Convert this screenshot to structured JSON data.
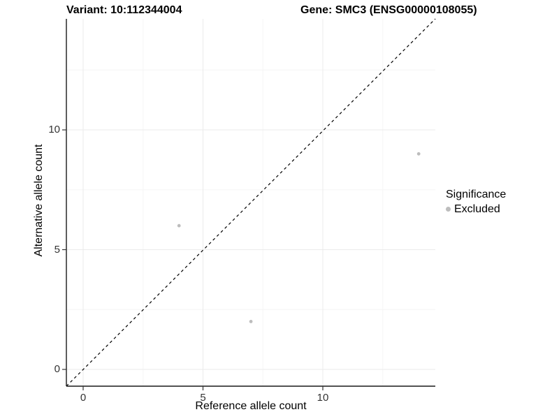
{
  "titles": {
    "variant": "Variant: 10:112344004",
    "gene": "Gene: SMC3 (ENSG00000108055)"
  },
  "axes": {
    "x_label": "Reference allele count",
    "y_label": "Alternative allele count"
  },
  "legend": {
    "title": "Significance",
    "items": [
      {
        "label": "Excluded",
        "color": "#bdbdbd"
      }
    ]
  },
  "colors": {
    "axis_line": "#1a1a1a",
    "tick_mark": "#333333",
    "grid_major": "#ebebeb",
    "grid_minor": "#f5f5f5",
    "identity_line": "#000000",
    "point": "#bdbdbd"
  },
  "chart_data": {
    "type": "scatter",
    "title": "Variant: 10:112344004 | Gene: SMC3 (ENSG00000108055)",
    "xlabel": "Reference allele count",
    "ylabel": "Alternative allele count",
    "xlim": [
      -0.7,
      14.7
    ],
    "ylim": [
      -0.7,
      14.7
    ],
    "x_ticks": [
      0,
      5,
      10
    ],
    "y_ticks": [
      0,
      5,
      10
    ],
    "x_minor_ticks": [
      2.5,
      7.5,
      12.5
    ],
    "y_minor_ticks": [
      2.5,
      7.5,
      12.5
    ],
    "grid": true,
    "legend_position": "right",
    "series": [
      {
        "name": "Excluded",
        "color": "#bdbdbd",
        "points": [
          {
            "x": 4,
            "y": 6
          },
          {
            "x": 7,
            "y": 2
          },
          {
            "x": 14,
            "y": 9
          }
        ]
      }
    ],
    "reference_line": {
      "kind": "identity",
      "style": "dashed",
      "color": "#000000"
    }
  }
}
